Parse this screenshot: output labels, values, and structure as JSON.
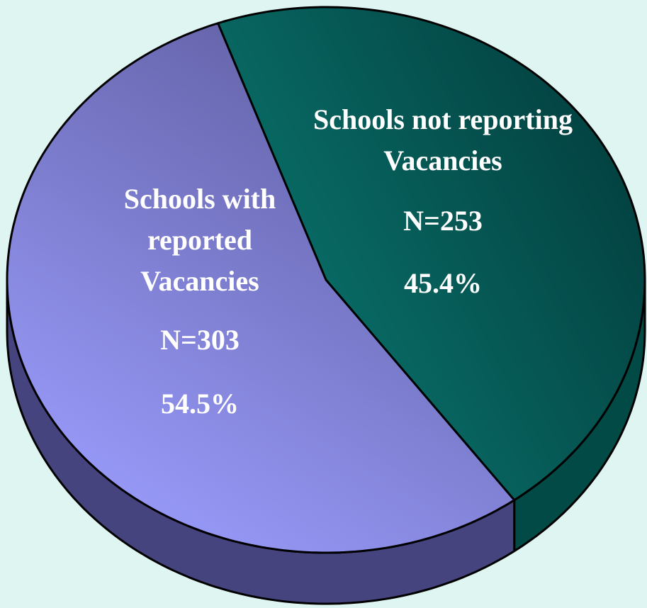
{
  "chart_data": {
    "type": "pie",
    "categories": [
      "Schools not reporting Vacancies",
      "Schools with reported Vacancies"
    ],
    "values": [
      45.4,
      54.5
    ],
    "value_labels": [
      "45.4%",
      "54.5%"
    ],
    "counts": [
      253,
      303
    ],
    "count_labels": [
      "N=253",
      "N=303"
    ],
    "colors": [
      "#0b6e66",
      "#8c8ef0"
    ]
  }
}
